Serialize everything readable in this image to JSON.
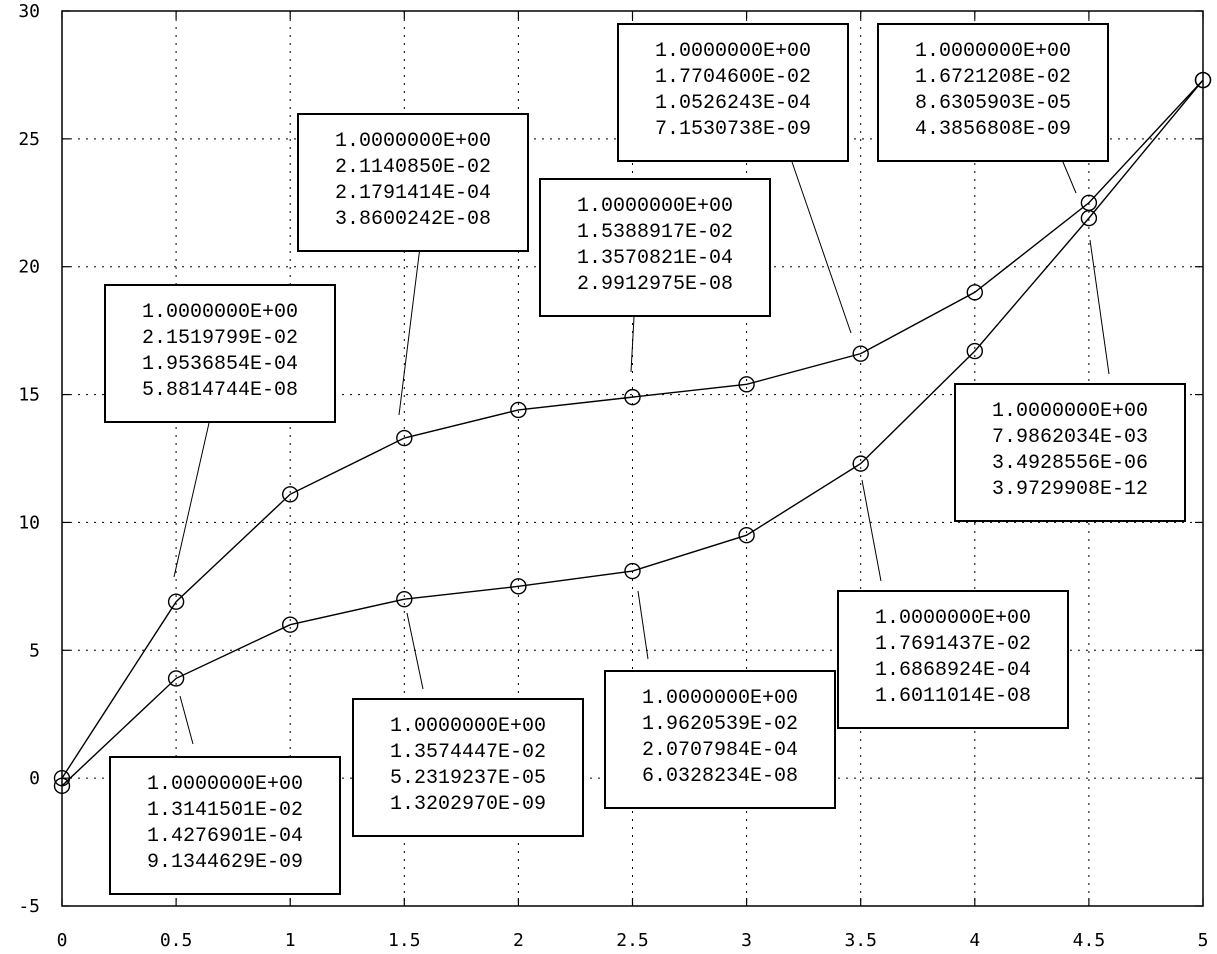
{
  "chart_data": {
    "type": "line",
    "title": "",
    "xlabel": "",
    "ylabel": "",
    "xlim": [
      0,
      5
    ],
    "ylim": [
      -5,
      30
    ],
    "xticks": [
      "0",
      "0.5",
      "1",
      "1.5",
      "2",
      "2.5",
      "3",
      "3.5",
      "4",
      "4.5",
      "5"
    ],
    "yticks": [
      "-5",
      "0",
      "5",
      "10",
      "15",
      "20",
      "25",
      "30"
    ],
    "grid": true,
    "legend": "none",
    "marker": "circle",
    "series": [
      {
        "x": [
          0,
          0.5,
          1,
          1.5,
          2,
          2.5,
          3,
          3.5,
          4,
          4.5,
          5
        ],
        "y": [
          0,
          6.9,
          11.1,
          13.3,
          14.4,
          14.9,
          15.4,
          16.6,
          19.0,
          22.5,
          27.3
        ]
      },
      {
        "x": [
          0,
          0.5,
          1,
          1.5,
          2,
          2.5,
          3,
          3.5,
          4,
          4.5,
          5
        ],
        "y": [
          -0.3,
          3.9,
          6.0,
          7.0,
          7.5,
          8.1,
          9.5,
          12.3,
          16.7,
          21.9,
          27.3
        ]
      }
    ],
    "annotations": [
      {
        "lines": [
          "1.0000000E+00",
          "2.1519799E-02",
          "1.9536854E-04",
          "5.8814744E-08"
        ],
        "x": 0.5,
        "y": 6.9
      },
      {
        "lines": [
          "1.0000000E+00",
          "1.3141501E-02",
          "1.4276901E-04",
          "9.1344629E-09"
        ],
        "x": 0.5,
        "y": 3.9
      },
      {
        "lines": [
          "1.0000000E+00",
          "2.1140850E-02",
          "2.1791414E-04",
          "3.8600242E-08"
        ],
        "x": 1.5,
        "y": 13.3
      },
      {
        "lines": [
          "1.0000000E+00",
          "1.3574447E-02",
          "5.2319237E-05",
          "1.3202970E-09"
        ],
        "x": 1.5,
        "y": 7.0
      },
      {
        "lines": [
          "1.0000000E+00",
          "1.5388917E-02",
          "1.3570821E-04",
          "2.9912975E-08"
        ],
        "x": 2.5,
        "y": 14.9
      },
      {
        "lines": [
          "1.0000000E+00",
          "1.9620539E-02",
          "2.0707984E-04",
          "6.0328234E-08"
        ],
        "x": 2.5,
        "y": 8.1
      },
      {
        "lines": [
          "1.0000000E+00",
          "1.7704600E-02",
          "1.0526243E-04",
          "7.1530738E-09"
        ],
        "x": 3.5,
        "y": 16.6
      },
      {
        "lines": [
          "1.0000000E+00",
          "1.7691437E-02",
          "1.6868924E-04",
          "1.6011014E-08"
        ],
        "x": 3.5,
        "y": 12.3
      },
      {
        "lines": [
          "1.0000000E+00",
          "1.6721208E-02",
          "8.6305903E-05",
          "4.3856808E-09"
        ],
        "x": 4.5,
        "y": 22.5
      },
      {
        "lines": [
          "1.0000000E+00",
          "7.9862034E-03",
          "3.4928556E-06",
          "3.9729908E-12"
        ],
        "x": 4.5,
        "y": 21.9
      }
    ]
  }
}
